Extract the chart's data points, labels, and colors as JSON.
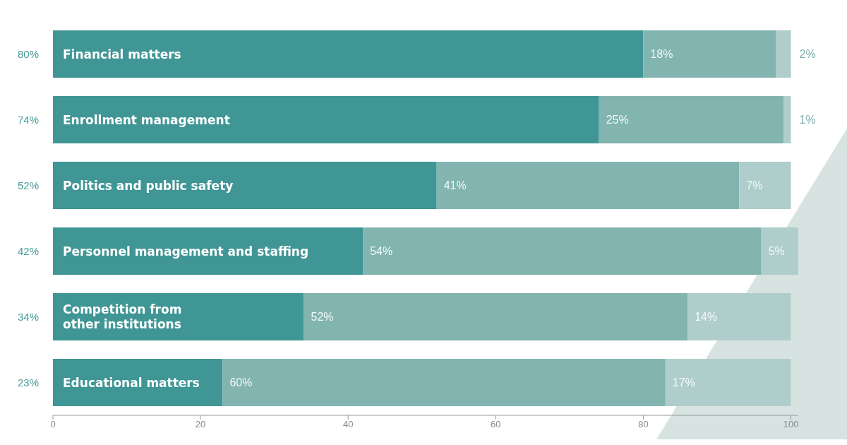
{
  "chart_data": {
    "type": "bar",
    "orientation": "horizontal",
    "stacked": true,
    "categories": [
      "Financial matters",
      "Enrollment management",
      "Politics and public safety",
      "Personnel management and staffing",
      "Competition from\nother institutions",
      "Educational matters"
    ],
    "series": [
      {
        "color": "#3f9695",
        "values": [
          80,
          74,
          52,
          42,
          34,
          23
        ],
        "value_labels": [
          "80%",
          "74%",
          "52%",
          "42%",
          "34%",
          "23%"
        ]
      },
      {
        "color": "#82b4b0",
        "values": [
          18,
          25,
          41,
          54,
          52,
          60
        ],
        "value_labels": [
          "18%",
          "25%",
          "41%",
          "54%",
          "52%",
          "60%"
        ]
      },
      {
        "color": "#afcecb",
        "values": [
          2,
          1,
          7,
          5,
          14,
          17
        ],
        "value_labels": [
          "2%",
          "1%",
          "7%",
          "5%",
          "14%",
          "17%"
        ]
      }
    ],
    "xlim": [
      0,
      101
    ],
    "xticks": [
      0,
      20,
      40,
      60,
      80,
      100
    ]
  }
}
